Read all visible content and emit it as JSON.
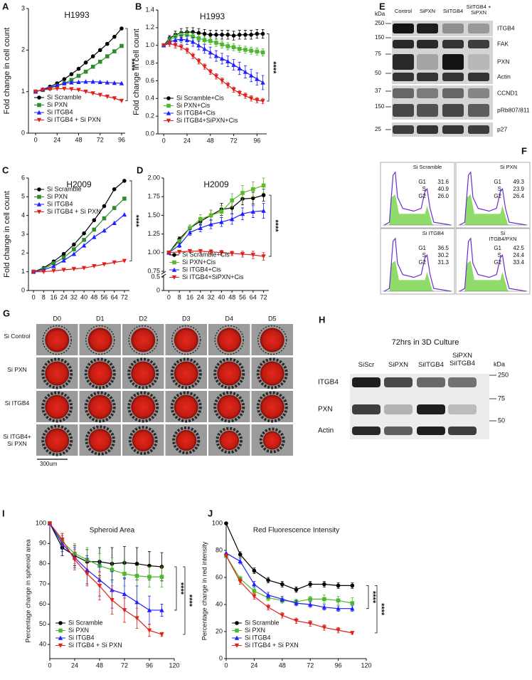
{
  "chart_data": [
    {
      "panel": "A",
      "type": "line",
      "title": "H1993",
      "y_label": "Fold change in cell count",
      "legend": "lower left",
      "annotations": [
        "****"
      ],
      "x": [
        0,
        8,
        16,
        24,
        32,
        40,
        48,
        56,
        64,
        72,
        80,
        88,
        96
      ],
      "xlim": [
        -8,
        100
      ],
      "xticks": [
        0,
        24,
        48,
        72,
        96
      ],
      "ylim": [
        0,
        3
      ],
      "yticks": [
        0,
        1,
        2,
        3
      ],
      "series": [
        {
          "name": "Si Scramble",
          "color": "#000000",
          "marker": "circle",
          "values": [
            1,
            1.05,
            1.12,
            1.2,
            1.3,
            1.42,
            1.55,
            1.7,
            1.85,
            2.0,
            2.15,
            2.32,
            2.52
          ]
        },
        {
          "name": "Si PXN",
          "color": "#2e8b2e",
          "marker": "square",
          "values": [
            1,
            1.04,
            1.08,
            1.14,
            1.2,
            1.28,
            1.38,
            1.48,
            1.6,
            1.72,
            1.85,
            1.97,
            2.1
          ]
        },
        {
          "name": "Si ITGB4",
          "color": "#1f1fff",
          "marker": "triangle-up",
          "values": [
            1,
            1.05,
            1.1,
            1.15,
            1.2,
            1.22,
            1.23,
            1.24,
            1.24,
            1.23,
            1.22,
            1.21,
            1.2
          ]
        },
        {
          "name": "Si ITGB4  + Si PXN",
          "color": "#e0201c",
          "marker": "triangle-down",
          "values": [
            1,
            1.04,
            1.06,
            1.07,
            1.07,
            1.06,
            1.04,
            1.0,
            0.96,
            0.92,
            0.88,
            0.84,
            0.78
          ]
        }
      ]
    },
    {
      "panel": "B",
      "type": "line",
      "title": "H1993",
      "y_label": "Fold change in cell count",
      "legend": "lower left",
      "annotations": [
        "****"
      ],
      "x": [
        0,
        6,
        12,
        18,
        24,
        30,
        36,
        42,
        48,
        54,
        60,
        66,
        72,
        78,
        84,
        90,
        96,
        102
      ],
      "xlim": [
        -6,
        106
      ],
      "xticks": [
        0,
        24,
        48,
        72,
        96
      ],
      "ylim": [
        0,
        1.4
      ],
      "yticks": [
        {
          "value": 0,
          "label": "0.0"
        },
        0.2,
        0.4,
        0.6,
        0.8,
        {
          "value": 1,
          "label": "1.0"
        },
        1.2,
        1.4
      ],
      "series": [
        {
          "name": "Si Scramble+Cis",
          "color": "#000000",
          "marker": "circle",
          "values": [
            1,
            1.08,
            1.12,
            1.14,
            1.15,
            1.15,
            1.14,
            1.13,
            1.12,
            1.12,
            1.12,
            1.12,
            1.11,
            1.12,
            1.12,
            1.12,
            1.13,
            1.13
          ],
          "errors": [
            0,
            0.03,
            0.04,
            0.05,
            0.05,
            0.05,
            0.05,
            0.05,
            0.05,
            0.05,
            0.05,
            0.05,
            0.05,
            0.05,
            0.05,
            0.05,
            0.05,
            0.05
          ]
        },
        {
          "name": "Si PXN+Cis",
          "color": "#4db82e",
          "marker": "square",
          "values": [
            1,
            1.06,
            1.1,
            1.12,
            1.12,
            1.1,
            1.08,
            1.06,
            1.05,
            1.03,
            1.01,
            0.99,
            0.98,
            0.96,
            0.95,
            0.94,
            0.93,
            0.92
          ],
          "errors": [
            0,
            0.03,
            0.04,
            0.04,
            0.04,
            0.04,
            0.04,
            0.04,
            0.04,
            0.04,
            0.04,
            0.04,
            0.04,
            0.04,
            0.04,
            0.04,
            0.04,
            0.04
          ]
        },
        {
          "name": "Si ITGB4+Cis",
          "color": "#1f1fff",
          "marker": "triangle-up",
          "values": [
            1,
            1.04,
            1.06,
            1.07,
            1.06,
            1.04,
            1.0,
            0.96,
            0.92,
            0.88,
            0.85,
            0.82,
            0.78,
            0.74,
            0.7,
            0.66,
            0.62,
            0.58
          ],
          "errors": [
            0,
            0.03,
            0.04,
            0.04,
            0.05,
            0.05,
            0.05,
            0.05,
            0.06,
            0.06,
            0.06,
            0.06,
            0.06,
            0.07,
            0.07,
            0.07,
            0.07,
            0.08
          ]
        },
        {
          "name": "Si ITGB4+SiPXN+Cis",
          "color": "#e0201c",
          "marker": "triangle-down",
          "values": [
            1,
            1.02,
            1.0,
            0.98,
            0.94,
            0.88,
            0.82,
            0.76,
            0.7,
            0.65,
            0.6,
            0.55,
            0.5,
            0.46,
            0.43,
            0.4,
            0.38,
            0.37
          ],
          "errors": [
            0,
            0.03,
            0.03,
            0.03,
            0.03,
            0.03,
            0.03,
            0.03,
            0.03,
            0.03,
            0.03,
            0.03,
            0.03,
            0.03,
            0.03,
            0.03,
            0.03,
            0.03
          ]
        }
      ]
    },
    {
      "panel": "C",
      "type": "line",
      "title": "H2009",
      "y_label": "Fold change in cell count",
      "legend": "upper left",
      "annotations": [
        "****"
      ],
      "x": [
        0,
        8,
        16,
        24,
        32,
        40,
        48,
        56,
        64,
        72
      ],
      "xlim": [
        -4,
        76
      ],
      "xticks": [
        0,
        8,
        16,
        24,
        32,
        40,
        48,
        56,
        64,
        72
      ],
      "ylim": [
        0,
        6
      ],
      "yticks": [
        0,
        1,
        2,
        3,
        4,
        5,
        6
      ],
      "series": [
        {
          "name": "Si Scramble",
          "color": "#000000",
          "marker": "circle",
          "values": [
            1.0,
            1.2,
            1.55,
            1.95,
            2.45,
            3.05,
            3.75,
            4.5,
            5.4,
            5.85
          ]
        },
        {
          "name": "Si PXN",
          "color": "#2e8b2e",
          "marker": "square",
          "values": [
            1.0,
            1.15,
            1.45,
            1.75,
            2.2,
            2.7,
            3.25,
            3.85,
            4.4,
            4.9
          ]
        },
        {
          "name": "Si ITGB4",
          "color": "#1f1fff",
          "marker": "triangle-up",
          "values": [
            1.0,
            1.1,
            1.3,
            1.6,
            1.95,
            2.4,
            2.85,
            3.2,
            3.6,
            4.05
          ]
        },
        {
          "name": "Si ITGB4  + Si PXN",
          "color": "#e0201c",
          "marker": "triangle-down",
          "values": [
            1.0,
            1.0,
            1.05,
            1.1,
            1.15,
            1.2,
            1.3,
            1.4,
            1.5,
            1.58
          ]
        }
      ]
    },
    {
      "panel": "D",
      "type": "line",
      "title": "H2009",
      "legend": "lower left",
      "annotations": [
        "****"
      ],
      "x": [
        0,
        8,
        16,
        24,
        32,
        40,
        48,
        56,
        64,
        72
      ],
      "xlim": [
        -4,
        76
      ],
      "xticks": [
        0,
        8,
        16,
        24,
        32,
        40,
        48,
        56,
        64,
        72
      ],
      "ylim": [
        0,
        2
      ],
      "ybreak": [
        0.5,
        0.75
      ],
      "yticks": [
        0,
        0.5,
        0.75,
        {
          "value": 1,
          "label": "1.00"
        },
        1.25,
        {
          "value": 1.5,
          "label": "1.50"
        },
        1.75,
        {
          "value": 2,
          "label": "2.00"
        }
      ],
      "series": [
        {
          "name": "Si Scramble+Cis",
          "color": "#000000",
          "marker": "circle",
          "values": [
            1.0,
            1.18,
            1.33,
            1.42,
            1.5,
            1.58,
            1.6,
            1.72,
            1.73,
            1.77
          ],
          "errors": [
            0,
            0.03,
            0.04,
            0.05,
            0.07,
            0.08,
            0.08,
            0.08,
            0.08,
            0.08
          ]
        },
        {
          "name": "Si PXN+Cis",
          "color": "#5cb82c",
          "marker": "square",
          "values": [
            1.0,
            1.15,
            1.33,
            1.45,
            1.5,
            1.55,
            1.7,
            1.8,
            1.85,
            1.9
          ],
          "errors": [
            0,
            0.03,
            0.04,
            0.06,
            0.07,
            0.08,
            0.09,
            0.1,
            0.1,
            0.1
          ]
        },
        {
          "name": "Si ITGB4+Cis",
          "color": "#1f1fff",
          "marker": "triangle-up",
          "values": [
            1.0,
            1.1,
            1.27,
            1.33,
            1.38,
            1.41,
            1.45,
            1.52,
            1.55,
            1.56
          ],
          "errors": [
            0,
            0.03,
            0.04,
            0.05,
            0.06,
            0.06,
            0.07,
            0.08,
            0.08,
            0.1
          ]
        },
        {
          "name": "Si ITGB4+SiPXN+Cis",
          "color": "#e0201c",
          "marker": "triangle-down",
          "values": [
            1.0,
            1.01,
            1.02,
            1.02,
            1.01,
            1.0,
            0.99,
            0.98,
            0.97,
            0.95
          ],
          "errors": [
            0,
            0.02,
            0.02,
            0.02,
            0.03,
            0.03,
            0.03,
            0.04,
            0.05,
            0.05
          ]
        }
      ]
    },
    {
      "panel": "I",
      "type": "line",
      "title": "Spheroid Area",
      "y_label": "Percentage change in spheroid area",
      "legend": "lower left",
      "annotations": [
        "****",
        "****"
      ],
      "x": [
        0,
        12,
        24,
        36,
        48,
        60,
        72,
        84,
        96,
        108
      ],
      "xlim": [
        0,
        120
      ],
      "xticks": [
        0,
        24,
        48,
        72,
        96,
        120
      ],
      "ylim": [
        33,
        100
      ],
      "yticks": [
        40,
        50,
        60,
        70,
        80,
        90,
        100
      ],
      "series": [
        {
          "name": "Si Scramble",
          "color": "#000000",
          "marker": "circle",
          "values": [
            100,
            88,
            84,
            81,
            81,
            80,
            80.5,
            80,
            79,
            78.5
          ],
          "errors": [
            0,
            4,
            5,
            6,
            7,
            8,
            8,
            8,
            7,
            7
          ]
        },
        {
          "name": "Si PXN",
          "color": "#4db82e",
          "marker": "square",
          "values": [
            100,
            91,
            85,
            82,
            79,
            77,
            75,
            74,
            73.5,
            73.5
          ],
          "errors": [
            0,
            4,
            5,
            6,
            6,
            6,
            6,
            5,
            5,
            5
          ]
        },
        {
          "name": "Si ITGB4",
          "color": "#1f1fff",
          "marker": "triangle-up",
          "values": [
            100,
            90,
            83,
            77,
            72,
            67,
            65,
            61,
            57,
            57
          ],
          "errors": [
            0,
            4,
            5,
            7,
            8,
            9,
            8,
            8,
            7,
            3
          ]
        },
        {
          "name": "Si ITGB4 + Si PXN",
          "color": "#e0201c",
          "marker": "triangle-down",
          "values": [
            100,
            92,
            82,
            75,
            69,
            62,
            57,
            53,
            47,
            45
          ],
          "errors": [
            0,
            3,
            5,
            6,
            7,
            7,
            6,
            5,
            3,
            1
          ]
        }
      ]
    },
    {
      "panel": "J",
      "type": "line",
      "title": "Red Fluorescence Intensity",
      "y_label": "Percentage change in red intensity",
      "legend": "lower left",
      "annotations": [
        "****",
        "****"
      ],
      "x": [
        0,
        12,
        24,
        36,
        48,
        60,
        72,
        84,
        96,
        108
      ],
      "xlim": [
        0,
        120
      ],
      "xticks": [
        0,
        24,
        48,
        72,
        96,
        120
      ],
      "ylim": [
        0,
        100
      ],
      "yticks": [
        0,
        20,
        40,
        60,
        80,
        100
      ],
      "series": [
        {
          "name": "Si Scramble",
          "color": "#000000",
          "marker": "circle",
          "values": [
            100,
            77,
            65,
            58,
            55,
            51,
            55,
            55,
            54,
            54
          ],
          "errors": [
            0,
            2,
            2,
            2,
            2,
            2,
            2,
            2,
            2,
            2
          ]
        },
        {
          "name": "Si PXN",
          "color": "#4db82e",
          "marker": "square",
          "values": [
            76,
            59,
            50,
            45,
            43,
            42,
            44,
            44,
            43,
            41
          ],
          "errors": [
            0,
            2,
            2,
            2,
            2,
            2,
            2,
            3,
            3,
            4
          ]
        },
        {
          "name": "Si ITGB4",
          "color": "#1f1fff",
          "marker": "triangle-up",
          "values": [
            78,
            72,
            55,
            47,
            44,
            41,
            40,
            38,
            37,
            37
          ],
          "errors": [
            0,
            2,
            2,
            2,
            2,
            2,
            2,
            2,
            2,
            2
          ]
        },
        {
          "name": "Si ITGB4 + Si PXN",
          "color": "#e0201c",
          "marker": "triangle-down",
          "values": [
            76,
            57,
            46,
            38,
            32,
            28,
            26,
            23,
            21,
            19
          ],
          "errors": [
            0,
            2,
            2,
            2,
            2,
            2,
            2,
            2,
            2,
            1
          ]
        }
      ]
    }
  ],
  "blot_e": {
    "panel": "E",
    "kda": "kDa",
    "lanes": [
      "Control",
      "SiPXN",
      "SiITGB4",
      "SiITGB4 + SiPXN"
    ],
    "markers": [
      "250",
      "150",
      "75",
      "50",
      "37",
      "150",
      "25"
    ],
    "bands": [
      "ITGB4",
      "FAK",
      "PXN",
      "Actin",
      "CCND1",
      "pRb807/811",
      "p27"
    ]
  },
  "flow_f": {
    "panel": "F",
    "plots": [
      {
        "label": "Si Scramble",
        "phases": [
          [
            "G1",
            "31.6"
          ],
          [
            "S",
            "40.9"
          ],
          [
            "G2",
            "26.0"
          ]
        ]
      },
      {
        "label": "Si PXN",
        "phases": [
          [
            "G1",
            "49.3"
          ],
          [
            "S",
            "23.9"
          ],
          [
            "G2",
            "26.4"
          ]
        ]
      },
      {
        "label": "Si ITGB4",
        "phases": [
          [
            "G1",
            "36.5"
          ],
          [
            "S",
            "30.2"
          ],
          [
            "G2",
            "31.3"
          ]
        ]
      },
      {
        "label": "Si ITGB4/PXN",
        "phases": [
          [
            "G1",
            "42.5"
          ],
          [
            "S",
            "24.4"
          ],
          [
            "G2",
            "33.4"
          ]
        ]
      }
    ]
  },
  "spheroid_g": {
    "panel": "G",
    "days": [
      "D0",
      "D1",
      "D2",
      "D3",
      "D4",
      "D5"
    ],
    "rows": [
      "Si Control",
      "Si PXN",
      "Si ITGB4",
      "Si ITGB4+ Si PXN"
    ],
    "scale": "300um"
  },
  "blot_h": {
    "panel": "H",
    "title": "72hrs in 3D Culture",
    "kda": "kDa",
    "lanes": [
      "SiScr",
      "SiPXN",
      "SiITGB4",
      "SiPXN SiITGB4"
    ],
    "markers": [
      "250",
      "75",
      "50"
    ],
    "bands": [
      "ITGB4",
      "PXN",
      "Actin"
    ]
  }
}
